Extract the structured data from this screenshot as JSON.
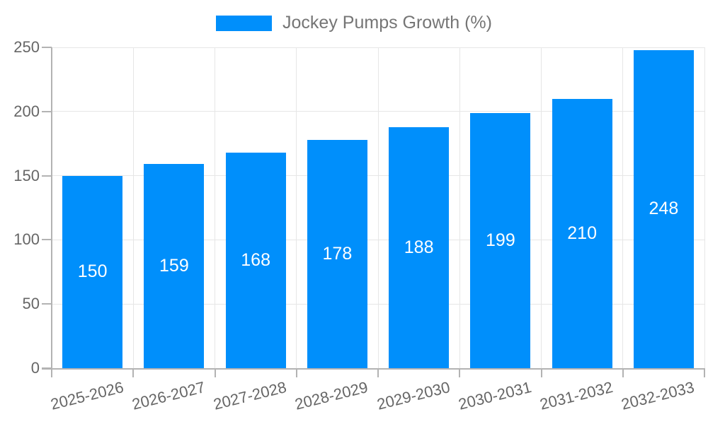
{
  "legend": {
    "label": "Jockey Pumps Growth (%)",
    "position": "top"
  },
  "colors": {
    "bar": "#008FFB",
    "axis": "#b3b3b3",
    "grid": "#e6e6e6",
    "tick_label": "#666666",
    "legend_text": "#757575",
    "value_label": "#ffffff",
    "background": "#ffffff"
  },
  "chart_data": {
    "type": "bar",
    "title": "",
    "categories": [
      "2025-2026",
      "2026-2027",
      "2027-2028",
      "2028-2029",
      "2029-2030",
      "2030-2031",
      "2031-2032",
      "2032-2033"
    ],
    "series": [
      {
        "name": "Jockey Pumps Growth (%)",
        "values": [
          150,
          159,
          168,
          178,
          188,
          199,
          210,
          248
        ]
      }
    ],
    "values": [
      150,
      159,
      168,
      178,
      188,
      199,
      210,
      248
    ],
    "xlabel": "",
    "ylabel": "",
    "ylim": [
      0,
      250
    ],
    "yticks": [
      0,
      50,
      100,
      150,
      200,
      250
    ],
    "grid": true,
    "legend_position": "top",
    "value_labels": "inside-center",
    "x_tick_rotation_deg": -14
  }
}
